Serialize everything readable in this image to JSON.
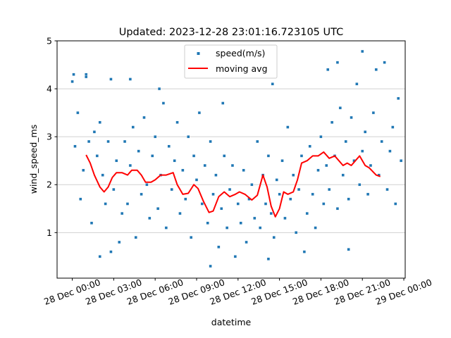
{
  "chart_data": {
    "type": "scatter",
    "title": "Updated: 2023-12-28 23:01:16.723105 UTC",
    "xlabel": "datetime",
    "ylabel": "wind_speed_ms",
    "x_units": "hours since 28 Dec 00:00",
    "xlim": [
      -1.1,
      24.1
    ],
    "ylim": [
      0.05,
      5
    ],
    "grid": "horizontal",
    "legend_placement": "upper-center",
    "x_ticks": [
      {
        "value": 0,
        "label": "28 Dec 00:00"
      },
      {
        "value": 3,
        "label": "28 Dec 03:00"
      },
      {
        "value": 6,
        "label": "28 Dec 06:00"
      },
      {
        "value": 9,
        "label": "28 Dec 09:00"
      },
      {
        "value": 12,
        "label": "28 Dec 12:00"
      },
      {
        "value": 15,
        "label": "28 Dec 15:00"
      },
      {
        "value": 18,
        "label": "28 Dec 18:00"
      },
      {
        "value": 21,
        "label": "28 Dec 21:00"
      },
      {
        "value": 24,
        "label": "29 Dec 00:00"
      }
    ],
    "y_ticks": [
      {
        "value": 1,
        "label": "1"
      },
      {
        "value": 2,
        "label": "2"
      },
      {
        "value": 3,
        "label": "3"
      },
      {
        "value": 4,
        "label": "4"
      },
      {
        "value": 5,
        "label": "5"
      }
    ],
    "series": [
      {
        "name": "speed(m/s)",
        "kind": "scatter",
        "color": "#1f77b4",
        "x_start": 0,
        "x_step": 0.2,
        "y": [
          4.15,
          2.8,
          3.5,
          1.7,
          2.3,
          4.3,
          2.9,
          1.2,
          3.1,
          2.6,
          3.3,
          2.2,
          1.6,
          2.9,
          0.6,
          1.9,
          2.5,
          0.8,
          1.4,
          2.9,
          1.6,
          2.4,
          3.2,
          0.9,
          2.7,
          1.8,
          3.4,
          2.0,
          1.3,
          2.6,
          3.0,
          1.5,
          2.2,
          3.7,
          1.1,
          2.8,
          1.9,
          2.5,
          3.3,
          1.4,
          2.3,
          1.7,
          3.0,
          0.9,
          2.6,
          2.1,
          3.5,
          1.6,
          2.4,
          1.2,
          2.9,
          1.8,
          2.2,
          0.7,
          1.5,
          2.6,
          1.1,
          1.9,
          2.4,
          0.5,
          1.6,
          1.2,
          2.3,
          0.8,
          1.7,
          2.0,
          1.3,
          2.9,
          1.1,
          2.2,
          1.6,
          2.6,
          1.4,
          0.9,
          2.1,
          1.8,
          2.5,
          1.3,
          3.2,
          1.7,
          2.2,
          1.0,
          1.9,
          2.6,
          0.6,
          1.4,
          2.8,
          1.8,
          1.1,
          2.3,
          3.0,
          1.6,
          2.4,
          1.9,
          3.3,
          2.6,
          1.5,
          3.6,
          2.2,
          2.9,
          1.7,
          3.4,
          2.5,
          4.1,
          2.0,
          2.7,
          3.1,
          1.8,
          2.4,
          3.5,
          4.4,
          2.2,
          2.9,
          4.55,
          1.9,
          2.7,
          3.2,
          1.6,
          3.8,
          2.5
        ],
        "outliers": [
          [
            0.1,
            4.3
          ],
          [
            1.0,
            4.25
          ],
          [
            2.8,
            4.2
          ],
          [
            4.2,
            4.2
          ],
          [
            6.3,
            4.0
          ],
          [
            10.9,
            3.7
          ],
          [
            14.5,
            4.1
          ],
          [
            18.5,
            4.4
          ],
          [
            19.2,
            4.55
          ],
          [
            21.0,
            4.78
          ],
          [
            10.0,
            0.3
          ],
          [
            14.2,
            0.45
          ],
          [
            2.0,
            0.5
          ],
          [
            20.0,
            0.65
          ]
        ]
      },
      {
        "name": "moving avg",
        "kind": "line",
        "color": "#ff0000",
        "x": [
          1.0,
          1.3,
          1.6,
          2.0,
          2.3,
          2.6,
          2.9,
          3.2,
          3.6,
          4.0,
          4.3,
          4.7,
          5.0,
          5.3,
          5.7,
          6.0,
          6.4,
          6.8,
          7.3,
          7.6,
          8.0,
          8.4,
          8.8,
          9.1,
          9.5,
          9.9,
          10.2,
          10.6,
          11.0,
          11.4,
          11.8,
          12.1,
          12.5,
          13.0,
          13.4,
          13.8,
          14.1,
          14.4,
          14.7,
          15.0,
          15.3,
          15.6,
          16.0,
          16.3,
          16.6,
          17.0,
          17.4,
          17.8,
          18.2,
          18.6,
          19.0,
          19.3,
          19.6,
          19.9,
          20.2,
          20.5,
          20.8,
          21.2,
          21.5,
          22.0,
          22.3
        ],
        "y": [
          2.62,
          2.45,
          2.2,
          1.95,
          1.85,
          1.95,
          2.15,
          2.25,
          2.25,
          2.2,
          2.3,
          2.3,
          2.2,
          2.05,
          2.05,
          2.1,
          2.2,
          2.2,
          2.25,
          2.0,
          1.8,
          1.82,
          2.0,
          1.92,
          1.65,
          1.42,
          1.45,
          1.75,
          1.85,
          1.75,
          1.8,
          1.85,
          1.8,
          1.68,
          1.78,
          2.2,
          1.95,
          1.55,
          1.33,
          1.5,
          1.85,
          1.8,
          1.85,
          2.1,
          2.45,
          2.5,
          2.6,
          2.6,
          2.68,
          2.55,
          2.6,
          2.5,
          2.4,
          2.45,
          2.4,
          2.5,
          2.6,
          2.4,
          2.35,
          2.2,
          2.17
        ]
      }
    ]
  }
}
